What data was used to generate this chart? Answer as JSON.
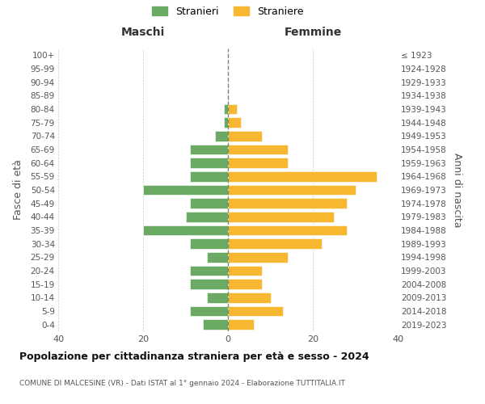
{
  "age_groups": [
    "0-4",
    "5-9",
    "10-14",
    "15-19",
    "20-24",
    "25-29",
    "30-34",
    "35-39",
    "40-44",
    "45-49",
    "50-54",
    "55-59",
    "60-64",
    "65-69",
    "70-74",
    "75-79",
    "80-84",
    "85-89",
    "90-94",
    "95-99",
    "100+"
  ],
  "birth_years": [
    "2019-2023",
    "2014-2018",
    "2009-2013",
    "2004-2008",
    "1999-2003",
    "1994-1998",
    "1989-1993",
    "1984-1988",
    "1979-1983",
    "1974-1978",
    "1969-1973",
    "1964-1968",
    "1959-1963",
    "1954-1958",
    "1949-1953",
    "1944-1948",
    "1939-1943",
    "1934-1938",
    "1929-1933",
    "1924-1928",
    "≤ 1923"
  ],
  "males": [
    6,
    9,
    5,
    9,
    9,
    5,
    9,
    20,
    10,
    9,
    20,
    9,
    9,
    9,
    3,
    1,
    1,
    0,
    0,
    0,
    0
  ],
  "females": [
    6,
    13,
    10,
    8,
    8,
    14,
    22,
    28,
    25,
    28,
    30,
    35,
    14,
    14,
    8,
    3,
    2,
    0,
    0,
    0,
    0
  ],
  "male_color": "#6aaa64",
  "female_color": "#f7b731",
  "background_color": "#ffffff",
  "grid_color": "#cccccc",
  "title": "Popolazione per cittadinanza straniera per età e sesso - 2024",
  "subtitle": "COMUNE DI MALCESINE (VR) - Dati ISTAT al 1° gennaio 2024 - Elaborazione TUTTITALIA.IT",
  "ylabel_left": "Fasce di età",
  "ylabel_right": "Anni di nascita",
  "xlabel_left": "Maschi",
  "xlabel_right": "Femmine",
  "legend_stranieri": "Stranieri",
  "legend_straniere": "Straniere",
  "xlim": 40
}
